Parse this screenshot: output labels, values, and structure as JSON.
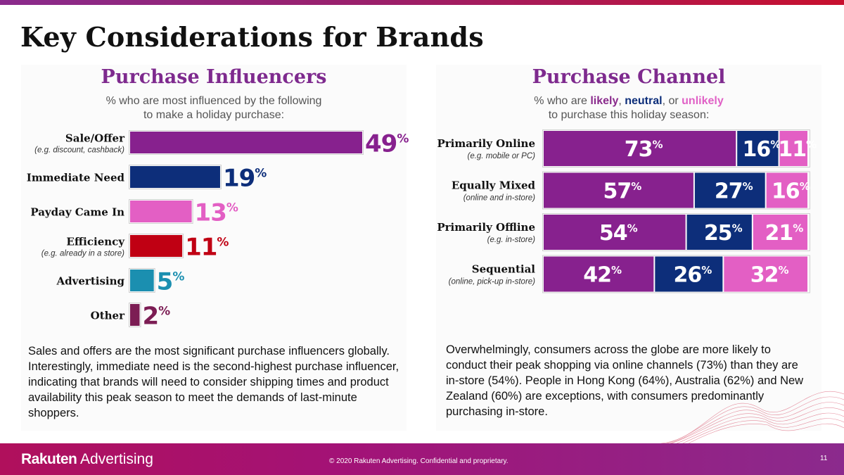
{
  "slide": {
    "title": "Key Considerations for Brands",
    "page_number": "11"
  },
  "footer": {
    "logo_bold": "Rakuten",
    "logo_light": " Advertising",
    "copyright": "© 2020 Rakuten Advertising. Confidential and proprietary."
  },
  "left": {
    "title": "Purchase Influencers",
    "subtitle_line1": "% who are most influenced by the following",
    "subtitle_line2": "to make a holiday purchase:",
    "body": "Sales and offers are the most significant purchase influencers globally. Interestingly, immediate need is the second-highest purchase influencer, indicating that brands will need to consider shipping times and product availability this peak season to meet the demands of last-minute shoppers."
  },
  "right": {
    "title": "Purchase Channel",
    "subtitle_pre": "% who are ",
    "subtitle_likely": "likely",
    "subtitle_sep1": ", ",
    "subtitle_neutral": "neutral",
    "subtitle_sep2": ", or ",
    "subtitle_unlikely": "unlikely",
    "subtitle_line2": "to purchase this holiday season:",
    "body": "Overwhelmingly, consumers across the globe are more likely to conduct their peak shopping via online channels (73%) than they are in-store (54%). People in Hong Kong (64%), Australia (62%) and New Zealand (60%) are exceptions, with consumers predominantly purchasing in-store."
  },
  "chart_data": [
    {
      "type": "bar",
      "orientation": "horizontal",
      "title": "Purchase Influencers",
      "categories": [
        "Sale/Offer",
        "Immediate Need",
        "Payday Came In",
        "Efficiency",
        "Advertising",
        "Other"
      ],
      "sublabels": [
        "(e.g. discount, cashback)",
        "",
        "",
        "(e.g. already in a store)",
        "",
        ""
      ],
      "values": [
        49,
        19,
        13,
        11,
        5,
        2
      ],
      "value_suffix": "%",
      "colors": [
        "#87218e",
        "#0d2e7a",
        "#e35fc4",
        "#c00013",
        "#1b8fb0",
        "#7c1d54"
      ],
      "xlim": [
        0,
        100
      ]
    },
    {
      "type": "bar",
      "orientation": "horizontal",
      "stacked": true,
      "title": "Purchase Channel",
      "categories": [
        "Primarily Online",
        "Equally Mixed",
        "Primarily Offline",
        "Sequential"
      ],
      "sublabels": [
        "(e.g. mobile or PC)",
        "(online and in-store)",
        "(e.g. in-store)",
        "(online, pick-up in-store)"
      ],
      "series": [
        {
          "name": "likely",
          "color": "#87218e",
          "values": [
            73,
            57,
            54,
            42
          ]
        },
        {
          "name": "neutral",
          "color": "#0d2e7a",
          "values": [
            16,
            27,
            25,
            26
          ]
        },
        {
          "name": "unlikely",
          "color": "#e35fc4",
          "values": [
            11,
            16,
            21,
            32
          ]
        }
      ],
      "value_suffix": "%",
      "xlim": [
        0,
        100
      ]
    }
  ]
}
